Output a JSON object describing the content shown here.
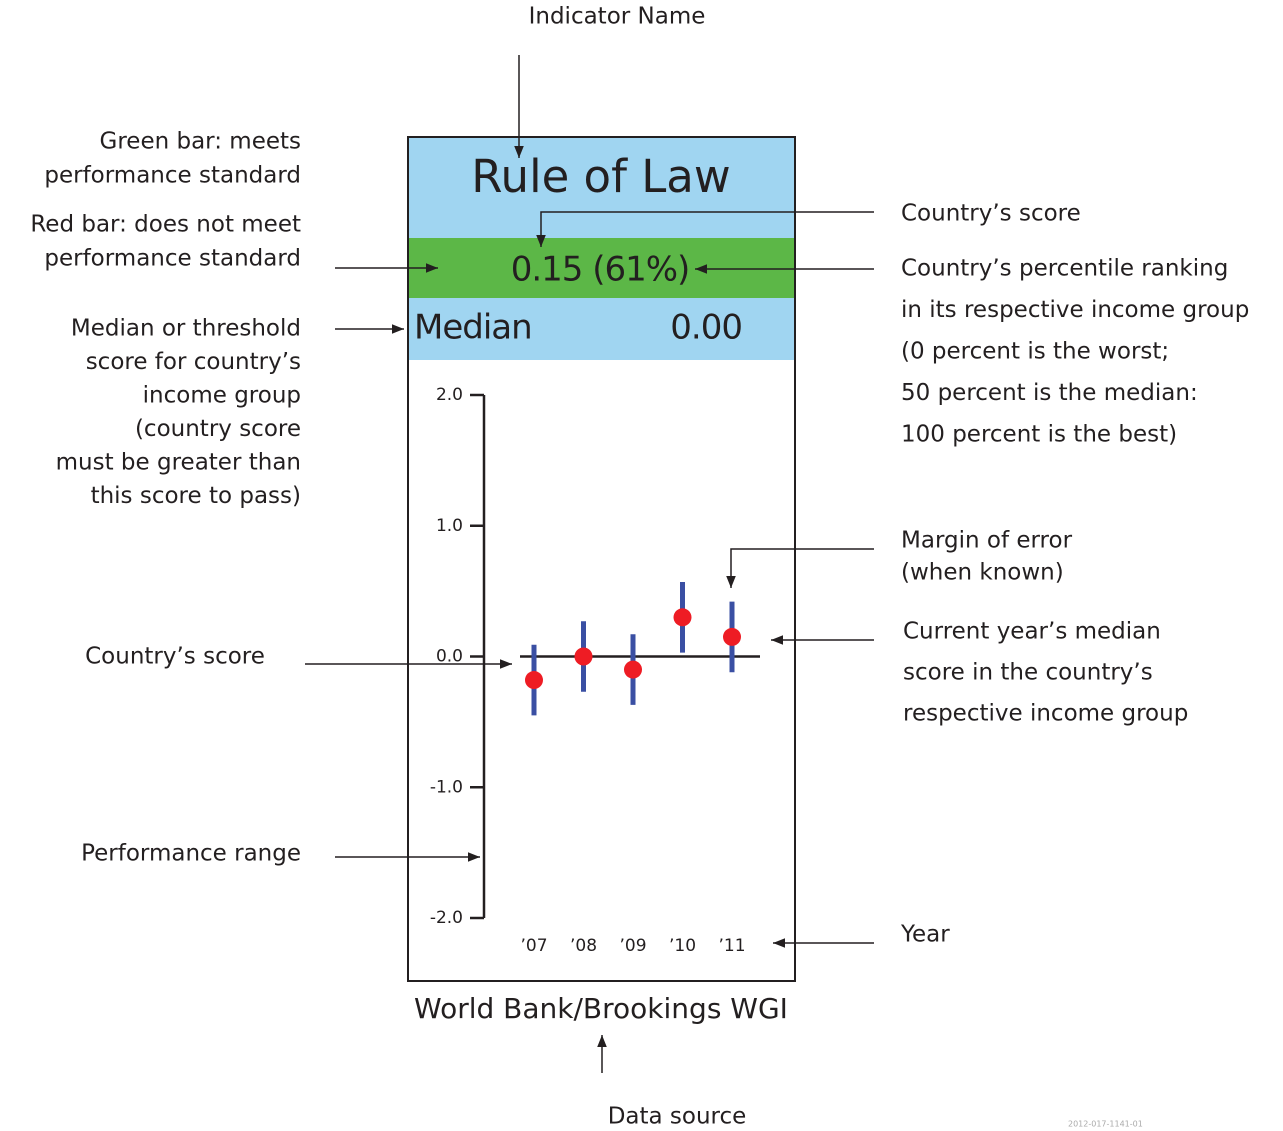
{
  "indicator_label": "Indicator Name",
  "left_notes": [
    [
      "Green bar: meets",
      "performance standard"
    ],
    [
      "Red bar: does not meet",
      "performance standard"
    ],
    [
      "Median or threshold",
      "score for country’s",
      "income group",
      "(country score",
      "must be greater than",
      "this score to pass)"
    ],
    [
      "Country’s score"
    ],
    [
      "Performance range"
    ]
  ],
  "right_notes": [
    [
      "Country’s score"
    ],
    [
      "Country’s percentile ranking",
      "in its respective income group",
      "(0 percent is the worst;",
      "50 percent is the median:",
      "100 percent is the best)"
    ],
    [
      "Margin of error",
      "(when known)"
    ],
    [
      "Current year’s median",
      "score in the country’s",
      "respective income group"
    ],
    [
      "Year"
    ]
  ],
  "card": {
    "title": "Rule of Law",
    "score": "0.15 (61%)",
    "median_label": "Median",
    "median_value": "0.00"
  },
  "chart_data": {
    "type": "errorbar",
    "categories": [
      "’07",
      "’08",
      "’09",
      "’10",
      "’11"
    ],
    "values": [
      -0.18,
      0.0,
      -0.1,
      0.3,
      0.15
    ],
    "errors": [
      0.27,
      0.27,
      0.27,
      0.27,
      0.27
    ],
    "median": 0.0,
    "point_color": "#ee1c24",
    "error_color": "#3a4fa3",
    "ylim": [
      -2,
      2
    ],
    "yticks": [
      {
        "value": 2,
        "label": "2.0"
      },
      {
        "value": 1,
        "label": "1.0"
      },
      {
        "value": 0,
        "label": "0.0"
      },
      {
        "value": -1,
        "label": "-1.0"
      },
      {
        "value": -2,
        "label": "-2.0"
      }
    ]
  },
  "source": "World Bank/Brookings WGI",
  "source_label": "Data source",
  "doc_id": "2012-017-1141-01"
}
